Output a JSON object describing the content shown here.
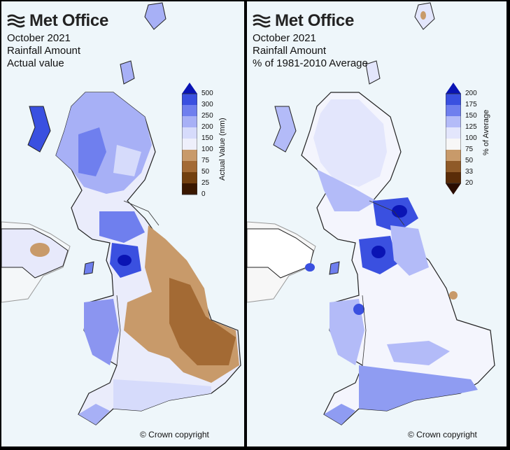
{
  "brand": "Met Office",
  "copyright": "© Crown copyright",
  "panels": [
    {
      "title_lines": [
        "October 2021",
        "Rainfall Amount",
        "Actual value"
      ],
      "legend": {
        "label": "Actual Value (mm)",
        "ticks": [
          "500",
          "300",
          "250",
          "200",
          "150",
          "100",
          "75",
          "50",
          "25",
          "0"
        ],
        "colors": [
          "#0a14b4",
          "#3a50e0",
          "#6f7fee",
          "#a7b0f6",
          "#d6dbfb",
          "#eeeffb",
          "#c89a6a",
          "#a36a34",
          "#72400f",
          "#3a1800"
        ]
      }
    },
    {
      "title_lines": [
        "October 2021",
        "Rainfall Amount",
        "% of 1981-2010 Average"
      ],
      "legend": {
        "label": "% of Average",
        "ticks": [
          "200",
          "175",
          "150",
          "125",
          "100",
          "75",
          "50",
          "33",
          "20"
        ],
        "colors": [
          "#0a14b4",
          "#3a50e0",
          "#6f7fee",
          "#b3bbf8",
          "#e3e6fc",
          "#f7f7f7",
          "#c89a6a",
          "#8f5a28",
          "#5a2c08",
          "#2a0c00"
        ]
      }
    }
  ]
}
